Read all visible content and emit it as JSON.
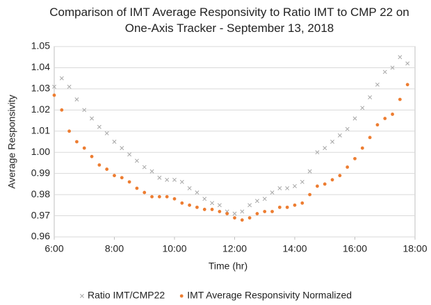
{
  "chart_data": {
    "type": "scatter",
    "title": "Comparison of IMT Average Responsivity to Ratio IMT to CMP 22 on One-Axis Tracker - September 13, 2018",
    "x_label": "Time (hr)",
    "y_label": "Average Responsivity",
    "xlim": [
      6,
      18
    ],
    "xticks": [
      {
        "value": 6,
        "label": "6:00"
      },
      {
        "value": 8,
        "label": "8:00"
      },
      {
        "value": 10,
        "label": "10:00"
      },
      {
        "value": 12,
        "label": "12:00"
      },
      {
        "value": 14,
        "label": "14:00"
      },
      {
        "value": 16,
        "label": "16:00"
      },
      {
        "value": 18,
        "label": "18:00"
      }
    ],
    "ylim": [
      0.96,
      1.05
    ],
    "yticks": [
      0.96,
      0.97,
      0.98,
      0.99,
      {
        "value": 1,
        "label": "1.00"
      },
      1.01,
      1.02,
      1.03,
      1.04,
      1.05
    ],
    "grid": true,
    "legend": "bottom",
    "x": [
      6.0,
      6.25,
      6.5,
      6.75,
      7.0,
      7.25,
      7.5,
      7.75,
      8.0,
      8.25,
      8.5,
      8.75,
      9.0,
      9.25,
      9.5,
      9.75,
      10.0,
      10.25,
      10.5,
      10.75,
      11.0,
      11.25,
      11.5,
      11.75,
      12.0,
      12.25,
      12.5,
      12.75,
      13.0,
      13.25,
      13.5,
      13.75,
      14.0,
      14.25,
      14.5,
      14.75,
      15.0,
      15.25,
      15.5,
      15.75,
      16.0,
      16.25,
      16.5,
      16.75,
      17.0,
      17.25,
      17.5,
      17.75
    ],
    "series": [
      {
        "name": "Ratio IMT/CMP22",
        "color": "#a6a6a6",
        "marker": "x",
        "values": [
          1.031,
          1.035,
          1.031,
          1.025,
          1.02,
          1.016,
          1.012,
          1.009,
          1.005,
          1.002,
          0.999,
          0.996,
          0.993,
          0.991,
          0.988,
          0.987,
          0.987,
          0.986,
          0.983,
          0.981,
          0.978,
          0.976,
          0.975,
          0.972,
          0.971,
          0.972,
          0.975,
          0.977,
          0.978,
          0.981,
          0.983,
          0.983,
          0.984,
          0.986,
          0.991,
          1.0,
          1.002,
          1.005,
          1.008,
          1.011,
          1.016,
          1.021,
          1.026,
          1.032,
          1.038,
          1.04,
          1.045,
          1.042
        ]
      },
      {
        "name": "IMT Average Responsivity Normalized",
        "color": "#ed7d31",
        "marker": "circle",
        "values": [
          1.027,
          1.02,
          1.01,
          1.005,
          1.002,
          0.998,
          0.994,
          0.992,
          0.989,
          0.988,
          0.986,
          0.983,
          0.981,
          0.979,
          0.979,
          0.979,
          0.978,
          0.976,
          0.975,
          0.974,
          0.973,
          0.973,
          0.972,
          0.971,
          0.969,
          0.968,
          0.969,
          0.971,
          0.972,
          0.972,
          0.974,
          0.974,
          0.975,
          0.976,
          0.98,
          0.984,
          0.985,
          0.987,
          0.989,
          0.993,
          0.997,
          1.002,
          1.007,
          1.013,
          1.016,
          1.018,
          1.025,
          1.032
        ]
      }
    ]
  }
}
